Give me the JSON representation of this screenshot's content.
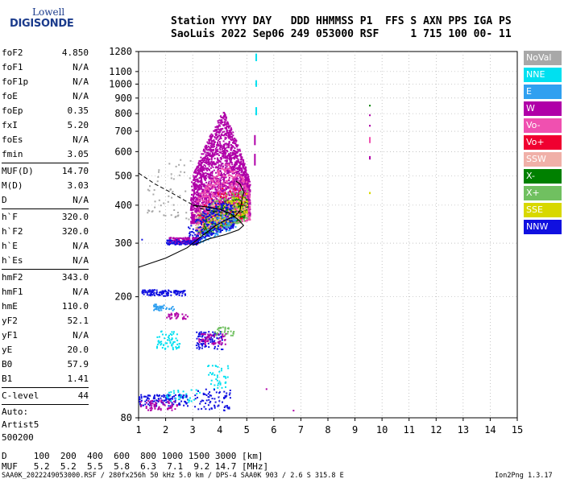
{
  "logo": {
    "line1": "Lowell",
    "line2": "DIGISONDE"
  },
  "header": {
    "line1": "Station YYYY DAY   DDD HHMMSS P1  FFS S AXN PPS IGA PS",
    "line2": "SaoLuis 2022 Sep06 249 053000 RSF     1 715 100 00- 11"
  },
  "params": [
    {
      "label": "foF2",
      "value": "4.850"
    },
    {
      "label": "foF1",
      "value": "N/A"
    },
    {
      "label": "foF1p",
      "value": "N/A"
    },
    {
      "label": "foE",
      "value": "N/A"
    },
    {
      "label": "foEp",
      "value": "0.35"
    },
    {
      "label": "fxI",
      "value": "5.20"
    },
    {
      "label": "foEs",
      "value": "N/A"
    },
    {
      "label": "fmin",
      "value": "3.05"
    },
    {
      "sep": true
    },
    {
      "label": "MUF(D)",
      "value": "14.70"
    },
    {
      "label": "M(D)",
      "value": "3.03"
    },
    {
      "label": "D",
      "value": "N/A"
    },
    {
      "sep": true
    },
    {
      "label": "h`F",
      "value": "320.0"
    },
    {
      "label": "h`F2",
      "value": "320.0"
    },
    {
      "label": "h`E",
      "value": "N/A"
    },
    {
      "label": "h`Es",
      "value": "N/A"
    },
    {
      "sep": true
    },
    {
      "label": "hmF2",
      "value": "343.0"
    },
    {
      "label": "hmF1",
      "value": "N/A"
    },
    {
      "label": "hmE",
      "value": "110.0"
    },
    {
      "label": "yF2",
      "value": "52.1"
    },
    {
      "label": "yF1",
      "value": "N/A"
    },
    {
      "label": "yE",
      "value": "20.0"
    },
    {
      "label": "B0",
      "value": "57.9"
    },
    {
      "label": "B1",
      "value": "1.41"
    },
    {
      "sep": true
    },
    {
      "label": "C-level",
      "value": "44"
    },
    {
      "sep": true
    }
  ],
  "scaler": {
    "line1": "Auto:",
    "line2": "Artist5",
    "line3": "500200"
  },
  "legend": [
    {
      "label": "NoVal",
      "color": "#a8a8a8"
    },
    {
      "label": "NNE",
      "color": "#00e0f0"
    },
    {
      "label": "E",
      "color": "#30a0f0"
    },
    {
      "label": "W",
      "color": "#b000a8"
    },
    {
      "label": "Vo-",
      "color": "#f050b0"
    },
    {
      "label": "Vo+",
      "color": "#f00030"
    },
    {
      "label": "SSW",
      "color": "#f0b0a8"
    },
    {
      "label": "X-",
      "color": "#008000"
    },
    {
      "label": "X+",
      "color": "#70c060"
    },
    {
      "label": "SSE",
      "color": "#d8d800"
    },
    {
      "label": "NNW",
      "color": "#1010e0"
    }
  ],
  "muf_table": {
    "row1": "D     100  200  400  600  800 1000 1500 3000 [km]",
    "row2": "MUF   5.2  5.2  5.5  5.8  6.3  7.1  9.2 14.7 [MHz]"
  },
  "footer": {
    "left": "SAA0K_2022249053000.RSF / 280fx256h 50 kHz 5.0 km / DPS-4 SAA0K 903 / 2.6 S 315.8 E",
    "right": "Ion2Png 1.3.17"
  },
  "chart_data": {
    "type": "scatter",
    "title": "",
    "xlabel": "",
    "ylabel": "",
    "xlim": [
      1,
      15
    ],
    "ylim": [
      80,
      1280
    ],
    "x_ticks": [
      1,
      2,
      3,
      4,
      5,
      6,
      7,
      8,
      9,
      10,
      11,
      12,
      13,
      14,
      15
    ],
    "y_ticks": [
      80,
      200,
      300,
      400,
      500,
      600,
      700,
      800,
      900,
      1000,
      1100,
      1280
    ],
    "grid": true,
    "legend_position": "right",
    "dense_regions": [
      {
        "color": "#b000a8",
        "fmin": 2.9,
        "fmax": 5.1,
        "hlow_start": 350,
        "hlow_end": 370,
        "htop_start": 480,
        "htop_mid": 820,
        "htop_end": 480,
        "n": 2600
      },
      {
        "color": "#f050b0",
        "fmin": 3.1,
        "fmax": 5.1,
        "hlow_start": 320,
        "hlow_end": 360,
        "htop_start": 420,
        "htop_mid": 560,
        "htop_end": 470,
        "n": 700
      },
      {
        "color": "#f00030",
        "fmin": 3.2,
        "fmax": 5.0,
        "hlow_start": 320,
        "hlow_end": 370,
        "htop_start": 390,
        "htop_mid": 470,
        "htop_end": 440,
        "n": 260
      },
      {
        "color": "#70c060",
        "fmin": 3.1,
        "fmax": 5.0,
        "hlow_start": 310,
        "hlow_end": 360,
        "htop_start": 370,
        "htop_mid": 440,
        "htop_end": 450,
        "n": 300
      },
      {
        "color": "#008000",
        "fmin": 3.3,
        "fmax": 5.0,
        "hlow_start": 320,
        "hlow_end": 370,
        "htop_start": 360,
        "htop_mid": 420,
        "htop_end": 430,
        "n": 160
      },
      {
        "color": "#d8d800",
        "fmin": 3.5,
        "fmax": 5.0,
        "hlow_start": 330,
        "hlow_end": 380,
        "htop_start": 360,
        "htop_mid": 420,
        "htop_end": 440,
        "n": 140
      },
      {
        "color": "#f0b0a8",
        "fmin": 3.0,
        "fmax": 5.0,
        "hlow_start": 330,
        "hlow_end": 370,
        "htop_start": 380,
        "htop_mid": 440,
        "htop_end": 440,
        "n": 100
      },
      {
        "color": "#1010e0",
        "fmin": 2.8,
        "fmax": 4.5,
        "hlow_start": 300,
        "hlow_end": 340,
        "htop_start": 340,
        "htop_mid": 420,
        "htop_end": 400,
        "n": 240
      },
      {
        "color": "#30a0f0",
        "fmin": 3.2,
        "fmax": 4.6,
        "hlow_start": 300,
        "hlow_end": 340,
        "htop_start": 320,
        "htop_mid": 380,
        "htop_end": 380,
        "n": 60
      },
      {
        "color": "#a8a8a8",
        "fmin": 1.3,
        "fmax": 2.9,
        "hlow_start": 380,
        "hlow_end": 360,
        "htop_start": 500,
        "htop_mid": 560,
        "htop_end": 640,
        "n": 55
      }
    ],
    "echo_bands": [
      {
        "color": "#b000a8",
        "fmin": 2.1,
        "fmax": 3.2,
        "hmin": 300,
        "hmax": 315,
        "n": 140
      },
      {
        "color": "#1010e0",
        "fmin": 2.0,
        "fmax": 3.2,
        "hmin": 298,
        "hmax": 310,
        "n": 70
      },
      {
        "color": "#1010e0",
        "fmin": 1.1,
        "fmax": 2.7,
        "hmin": 202,
        "hmax": 212,
        "n": 120
      },
      {
        "color": "#30a0f0",
        "fmin": 1.5,
        "fmax": 2.3,
        "hmin": 180,
        "hmax": 190,
        "n": 40
      },
      {
        "color": "#b000a8",
        "fmin": 2.0,
        "fmax": 2.8,
        "hmin": 170,
        "hmax": 178,
        "n": 30
      },
      {
        "color": "#00e0f0",
        "fmin": 1.6,
        "fmax": 2.5,
        "hmin": 135,
        "hmax": 155,
        "n": 60
      },
      {
        "color": "#1010e0",
        "fmin": 1.0,
        "fmax": 2.8,
        "hmin": 88,
        "hmax": 96,
        "n": 130
      },
      {
        "color": "#b000a8",
        "fmin": 1.0,
        "fmax": 2.4,
        "hmin": 85,
        "hmax": 92,
        "n": 60
      },
      {
        "color": "#1010e0",
        "fmin": 3.1,
        "fmax": 4.1,
        "hmin": 135,
        "hmax": 155,
        "n": 90
      },
      {
        "color": "#b000a8",
        "fmin": 3.2,
        "fmax": 4.2,
        "hmin": 140,
        "hmax": 152,
        "n": 60
      },
      {
        "color": "#00e0f0",
        "fmin": 3.5,
        "fmax": 4.3,
        "hmin": 100,
        "hmax": 120,
        "n": 40
      },
      {
        "color": "#70c060",
        "fmin": 3.8,
        "fmax": 4.5,
        "hmin": 150,
        "hmax": 160,
        "n": 30
      },
      {
        "color": "#1010e0",
        "fmin": 3.0,
        "fmax": 4.4,
        "hmin": 85,
        "hmax": 100,
        "n": 70
      },
      {
        "color": "#00e0f0",
        "fmin": 2.0,
        "fmax": 3.3,
        "hmin": 90,
        "hmax": 100,
        "n": 30
      }
    ],
    "vertical_traces": [
      {
        "color": "#00e0f0",
        "f": 5.35,
        "h1": 1190,
        "h2": 1260
      },
      {
        "color": "#00e0f0",
        "f": 5.35,
        "h1": 980,
        "h2": 1030
      },
      {
        "color": "#00e0f0",
        "f": 5.35,
        "h1": 790,
        "h2": 840
      },
      {
        "color": "#b000a8",
        "f": 5.3,
        "h1": 630,
        "h2": 680
      },
      {
        "color": "#b000a8",
        "f": 5.3,
        "h1": 540,
        "h2": 590
      },
      {
        "color": "#f050b0",
        "f": 9.55,
        "h1": 640,
        "h2": 670
      },
      {
        "color": "#b000a8",
        "f": 9.55,
        "h1": 565,
        "h2": 580
      },
      {
        "color": "#b000a8",
        "f": 9.55,
        "h1": 725,
        "h2": 735
      },
      {
        "color": "#b000a8",
        "f": 9.55,
        "h1": 785,
        "h2": 795
      },
      {
        "color": "#008000",
        "f": 9.55,
        "h1": 850,
        "h2": 855
      },
      {
        "color": "#d8d800",
        "f": 9.55,
        "h1": 435,
        "h2": 442
      }
    ],
    "isolated_points": [
      {
        "color": "#b000a8",
        "f": 6.7,
        "h": 85
      },
      {
        "color": "#b000a8",
        "f": 5.7,
        "h": 100
      },
      {
        "color": "#1010e0",
        "f": 1.1,
        "h": 310
      }
    ],
    "trace_line": {
      "color": "#000000",
      "points": [
        [
          1.0,
          250
        ],
        [
          2.0,
          268
        ],
        [
          2.8,
          290
        ],
        [
          3.4,
          320
        ],
        [
          3.9,
          345
        ],
        [
          4.3,
          360
        ],
        [
          4.6,
          370
        ],
        [
          4.75,
          385
        ],
        [
          4.85,
          430
        ],
        [
          4.9,
          440
        ],
        [
          4.75,
          470
        ],
        [
          4.6,
          480
        ]
      ]
    },
    "profile_line": {
      "color": "#000000",
      "points": [
        [
          3.0,
          295
        ],
        [
          3.6,
          310
        ],
        [
          4.2,
          320
        ],
        [
          4.7,
          332
        ],
        [
          4.88,
          343
        ],
        [
          4.7,
          358
        ],
        [
          4.4,
          375
        ],
        [
          4.0,
          388
        ],
        [
          3.5,
          395
        ],
        [
          3.0,
          400
        ]
      ]
    },
    "profile_dashed": {
      "color": "#000000",
      "points": [
        [
          1.0,
          510
        ],
        [
          1.6,
          470
        ],
        [
          2.2,
          440
        ],
        [
          2.8,
          410
        ],
        [
          3.3,
          390
        ],
        [
          3.8,
          380
        ],
        [
          4.2,
          378
        ],
        [
          4.6,
          380
        ],
        [
          4.8,
          380
        ],
        [
          4.85,
          375
        ]
      ]
    }
  }
}
